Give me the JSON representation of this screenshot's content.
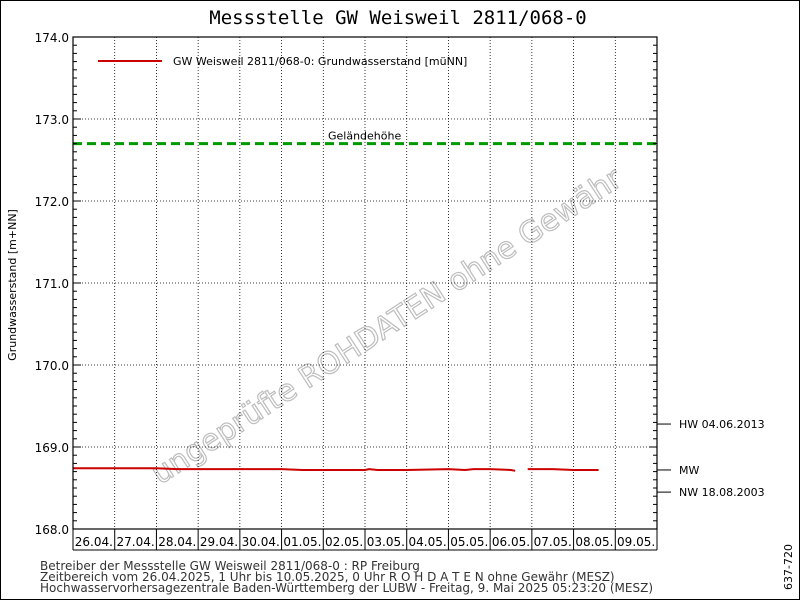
{
  "chart_data": {
    "type": "line",
    "title": "Messstelle GW Weisweil 2811/068-0",
    "ylabel": "Grundwasserstand [m+NN]",
    "ylim": [
      168.0,
      174.0
    ],
    "y_ticks": [
      "168.0",
      "169.0",
      "170.0",
      "171.0",
      "172.0",
      "173.0",
      "174.0"
    ],
    "x_ticks": [
      "26.04.",
      "27.04.",
      "28.04.",
      "29.04.",
      "30.04.",
      "01.05.",
      "02.05.",
      "03.05.",
      "04.05.",
      "05.05.",
      "06.05.",
      "07.05.",
      "08.05.",
      "09.05."
    ],
    "x_range_days": [
      0,
      14
    ],
    "grid": true,
    "legend_position": "top-left",
    "series": [
      {
        "name": "GW Weisweil 2811/068-0: Grundwasserstand  [müNN]",
        "color": "#cc0000",
        "segments": [
          {
            "x_days": [
              0.0,
              1.0,
              2.0,
              2.5,
              3.0,
              4.0,
              5.0,
              5.5,
              6.0,
              7.0,
              7.1,
              7.3,
              8.0,
              9.0,
              9.4,
              9.6,
              10.0,
              10.5,
              10.6
            ],
            "y": [
              168.74,
              168.74,
              168.74,
              168.73,
              168.73,
              168.73,
              168.73,
              168.72,
              168.72,
              168.72,
              168.73,
              168.72,
              168.72,
              168.73,
              168.72,
              168.73,
              168.73,
              168.72,
              168.71
            ]
          },
          {
            "x_days": [
              10.9,
              11.5,
              12.0,
              12.6
            ],
            "y": [
              168.73,
              168.73,
              168.72,
              168.72
            ]
          }
        ]
      }
    ],
    "reference_lines": [
      {
        "label": "Geländehöhe",
        "y": 172.7,
        "color": "#009900",
        "style": "dashed"
      }
    ],
    "side_markers": [
      {
        "label": "HW 04.06.2013",
        "y": 169.28
      },
      {
        "label": "MW",
        "y": 168.72
      },
      {
        "label": "NW 18.08.2003",
        "y": 168.45
      }
    ],
    "watermark": "ungeprüfte ROHDATEN ohne Gewähr"
  },
  "footer": {
    "line1": "Betreiber der Messstelle GW Weisweil 2811/068-0 : RP Freiburg",
    "line2": "Zeitbereich vom 26.04.2025, 1 Uhr bis 10.05.2025, 0 Uhr   R O H D A T E N ohne Gewähr (MESZ)",
    "line3": "Hochwasservorhersagezentrale Baden-Württemberg der LUBW - Freitag, 9. Mai 2025 05:23:20 (MESZ)",
    "code": "637-720"
  }
}
